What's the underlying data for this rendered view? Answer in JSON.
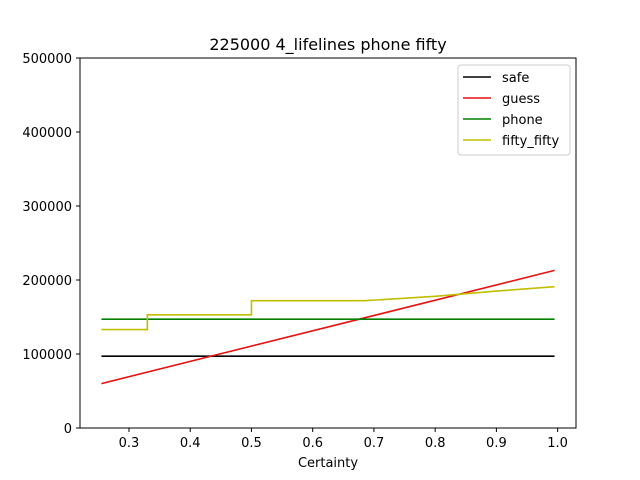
{
  "chart_data": {
    "type": "line",
    "title": "225000 4_lifelines phone fifty",
    "xlabel": "Certainty",
    "ylabel": "",
    "xlim": [
      0.22,
      1.03
    ],
    "ylim": [
      0,
      500000
    ],
    "x_ticks": [
      0.3,
      0.4,
      0.5,
      0.6,
      0.7,
      0.8,
      0.9,
      1.0
    ],
    "x_tick_labels": [
      "0.3",
      "0.4",
      "0.5",
      "0.6",
      "0.7",
      "0.8",
      "0.9",
      "1.0"
    ],
    "y_ticks": [
      0,
      100000,
      200000,
      300000,
      400000,
      500000
    ],
    "y_tick_labels": [
      "0",
      "100000",
      "200000",
      "300000",
      "400000",
      "500000"
    ],
    "grid": false,
    "legend_position": "top-right",
    "series": [
      {
        "name": "safe",
        "color": "#000000",
        "points": [
          [
            0.255,
            97000
          ],
          [
            0.995,
            97000
          ]
        ]
      },
      {
        "name": "guess",
        "color": "#e8110f",
        "points": [
          [
            0.255,
            60000
          ],
          [
            0.995,
            213000
          ]
        ]
      },
      {
        "name": "phone",
        "color": "#008000",
        "points": [
          [
            0.255,
            147000
          ],
          [
            0.995,
            147000
          ]
        ]
      },
      {
        "name": "fifty_fifty",
        "color": "#bfbf00",
        "points": [
          [
            0.255,
            133000
          ],
          [
            0.33,
            133000
          ],
          [
            0.33,
            153000
          ],
          [
            0.5,
            153000
          ],
          [
            0.5,
            172000
          ],
          [
            0.685,
            172000
          ],
          [
            0.8,
            178000
          ],
          [
            0.9,
            185000
          ],
          [
            0.995,
            191000
          ]
        ]
      }
    ]
  }
}
